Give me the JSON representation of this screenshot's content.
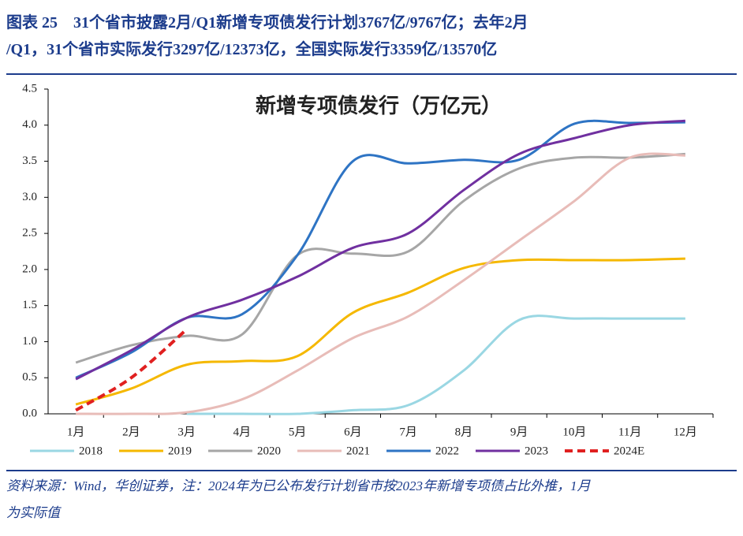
{
  "header": {
    "title_line1": "图表 25　31个省市披露2月/Q1新增专项债发行计划3767亿/9767亿；去年2月",
    "title_line2": "/Q1，31个省市实际发行3297亿/12373亿，全国实际发行3359亿/13570亿"
  },
  "source": {
    "line1": "资料来源：Wind，华创证券，注：2024年为已公布发行计划省市按2023年新增专项债占比外推，1月",
    "line2": "为实际值"
  },
  "chart_data": {
    "type": "line",
    "title": "新增专项债发行（万亿元）",
    "categories": [
      "1月",
      "2月",
      "3月",
      "4月",
      "5月",
      "6月",
      "7月",
      "8月",
      "9月",
      "10月",
      "11月",
      "12月"
    ],
    "ylim": [
      0,
      4.5
    ],
    "yticks": [
      {
        "value": 0,
        "label": "0.0"
      },
      0.5,
      {
        "value": 1,
        "label": "1.0"
      },
      1.5,
      {
        "value": 2,
        "label": "2.0"
      },
      2.5,
      {
        "value": 3,
        "label": "3.0"
      },
      3.5,
      {
        "value": 4,
        "label": "4.0"
      },
      4.5
    ],
    "grid": false,
    "legend": "bottom",
    "series": [
      {
        "name": "2018",
        "color": "#9ad7e3",
        "dashed": false,
        "values": [
          null,
          null,
          0,
          0,
          0,
          0.05,
          0.12,
          0.6,
          1.3,
          1.32,
          1.32,
          1.32
        ]
      },
      {
        "name": "2019",
        "color": "#f5b800",
        "dashed": false,
        "values": [
          0.13,
          0.35,
          0.68,
          0.73,
          0.8,
          1.4,
          1.68,
          2.02,
          2.13,
          2.13,
          2.13,
          2.15
        ]
      },
      {
        "name": "2020",
        "color": "#a6a6a6",
        "dashed": false,
        "values": [
          0.71,
          0.95,
          1.08,
          1.1,
          2.2,
          2.22,
          2.25,
          2.95,
          3.4,
          3.55,
          3.55,
          3.6
        ]
      },
      {
        "name": "2021",
        "color": "#e8bcb8",
        "dashed": false,
        "values": [
          0,
          0,
          0.02,
          0.2,
          0.6,
          1.05,
          1.35,
          1.85,
          2.4,
          2.95,
          3.55,
          3.58
        ]
      },
      {
        "name": "2022",
        "color": "#2e74c4",
        "dashed": false,
        "values": [
          0.5,
          0.85,
          1.33,
          1.38,
          2.2,
          3.5,
          3.47,
          3.52,
          3.52,
          4.02,
          4.03,
          4.04
        ]
      },
      {
        "name": "2023",
        "color": "#7030a0",
        "dashed": false,
        "values": [
          0.48,
          0.88,
          1.33,
          1.58,
          1.9,
          2.3,
          2.5,
          3.1,
          3.6,
          3.82,
          4.0,
          4.06
        ]
      },
      {
        "name": "2024E",
        "color": "#e02020",
        "dashed": true,
        "values": [
          0.05,
          0.5,
          1.17,
          null,
          null,
          null,
          null,
          null,
          null,
          null,
          null,
          null
        ]
      }
    ]
  }
}
